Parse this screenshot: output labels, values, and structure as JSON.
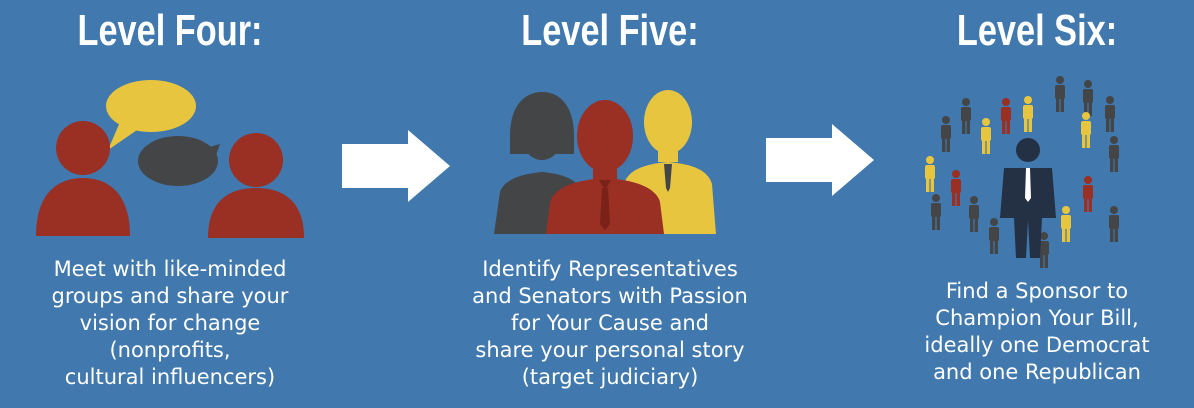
{
  "colors": {
    "background": "#4178ad",
    "red": "#9a2f24",
    "gray": "#444547",
    "yellow": "#e8c53f",
    "arrow": "#ffffff"
  },
  "levels": [
    {
      "title": "Level Four:",
      "icon": "people-talking-icon",
      "description": [
        "Meet with like-minded",
        "groups and share your",
        "vision for change",
        "(nonprofits,",
        "cultural influencers)"
      ]
    },
    {
      "title": "Level Five:",
      "icon": "representatives-icon",
      "description": [
        "Identify Representatives",
        "and Senators with Passion",
        "for Your Cause and",
        "share your personal story",
        "(target judiciary)"
      ]
    },
    {
      "title": "Level Six:",
      "icon": "crowd-sponsor-icon",
      "description": [
        "Find a Sponsor to",
        "Champion Your Bill,",
        "ideally one Democrat",
        "and one Republican"
      ]
    }
  ]
}
